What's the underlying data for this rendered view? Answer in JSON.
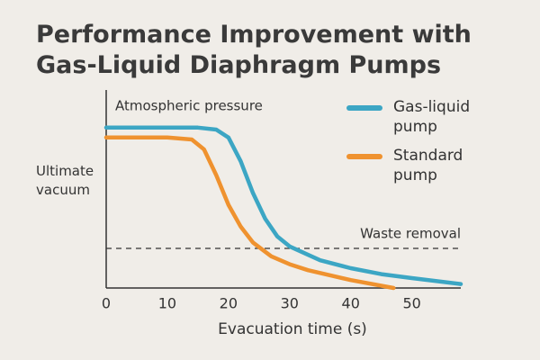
{
  "chart_data": {
    "type": "line",
    "title": "Performance Improvement with Gas-Liquid Diaphragm Pumps",
    "x_label": "Evacuation time (s)",
    "y_label": "Ultimate vacuum",
    "xlim": [
      0,
      58
    ],
    "xticks": [
      0,
      10,
      20,
      30,
      40,
      50
    ],
    "ylim": [
      0,
      100
    ],
    "grid": false,
    "legend": "top-right",
    "annotations": [
      {
        "text": "Atmospheric pressure"
      },
      {
        "text": "Waste removal",
        "y": 20
      }
    ],
    "series": [
      {
        "name": "Gas-liquid pump",
        "color": "#3ca6c4",
        "x": [
          0,
          10,
          15,
          18,
          20,
          22,
          24,
          26,
          28,
          30,
          35,
          40,
          45,
          50,
          58
        ],
        "values": [
          81,
          81,
          81,
          80,
          76,
          64,
          48,
          35,
          26,
          21,
          14,
          10,
          7,
          5,
          2
        ]
      },
      {
        "name": "Standard pump",
        "color": "#ef922f",
        "x": [
          0,
          10,
          14,
          16,
          18,
          20,
          22,
          24,
          27,
          30,
          33,
          40,
          47
        ],
        "values": [
          76,
          76,
          75,
          70,
          57,
          42,
          31,
          23,
          16,
          12,
          9,
          4,
          0
        ]
      }
    ]
  }
}
